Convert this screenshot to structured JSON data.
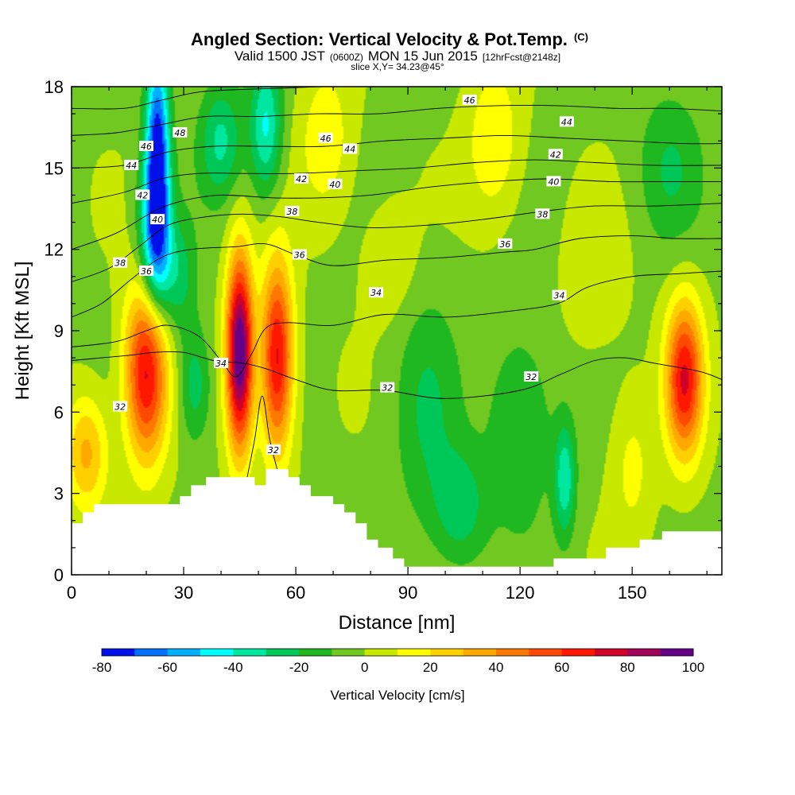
{
  "title": {
    "main": "Angled Section: Vertical Velocity & Pot.Temp.",
    "main_unit": "(C)",
    "valid_prefix": "Valid 1500 JST",
    "valid_z": "(0600Z)",
    "valid_date": "MON 15 Jun 2015",
    "forecast": "[12hrFcst@2148z]",
    "slice": "slice X,Y= 34.23@45°"
  },
  "chart_data": {
    "type": "heatmap",
    "xlabel": "Distance [nm]",
    "ylabel": "Height [Kft MSL]",
    "xlim": [
      0,
      174
    ],
    "ylim": [
      0,
      18
    ],
    "x_ticks": [
      0,
      30,
      60,
      90,
      120,
      150
    ],
    "y_ticks": [
      0,
      3,
      6,
      9,
      12,
      15,
      18
    ],
    "x_tick_labels": [
      "0",
      "30",
      "60",
      "90",
      "120",
      "150"
    ],
    "y_tick_labels": [
      "0",
      "3",
      "6",
      "9",
      "12",
      "15",
      "18"
    ],
    "background_value": -2,
    "features": [
      {
        "x": 23,
        "y": 15.5,
        "sx": 2.2,
        "sy": 2.8,
        "amp": -75
      },
      {
        "x": 22,
        "y": 12.5,
        "sx": 3.0,
        "sy": 2.0,
        "amp": -45
      },
      {
        "x": 52,
        "y": 16.5,
        "sx": 3.0,
        "sy": 1.8,
        "amp": -40
      },
      {
        "x": 40,
        "y": 16.0,
        "sx": 4.0,
        "sy": 1.5,
        "amp": -30
      },
      {
        "x": 28,
        "y": 11.0,
        "sx": 3.5,
        "sy": 1.5,
        "amp": -25
      },
      {
        "x": 20,
        "y": 7.5,
        "sx": 4.0,
        "sy": 2.3,
        "amp": 75
      },
      {
        "x": 45,
        "y": 8.2,
        "sx": 2.5,
        "sy": 2.5,
        "amp": 105
      },
      {
        "x": 55,
        "y": 8.0,
        "sx": 3.0,
        "sy": 2.5,
        "amp": 75
      },
      {
        "x": 164,
        "y": 7.2,
        "sx": 3.5,
        "sy": 2.0,
        "amp": 72
      },
      {
        "x": 4,
        "y": 4.5,
        "sx": 4.0,
        "sy": 1.5,
        "amp": 35
      },
      {
        "x": 33,
        "y": 7.0,
        "sx": 3.0,
        "sy": 1.5,
        "amp": -25
      },
      {
        "x": 132,
        "y": 3.5,
        "sx": 2.0,
        "sy": 1.5,
        "amp": -35
      },
      {
        "x": 104,
        "y": 2.5,
        "sx": 5.0,
        "sy": 1.5,
        "amp": -25
      },
      {
        "x": 120,
        "y": 5.5,
        "sx": 6.0,
        "sy": 2.5,
        "amp": -20
      },
      {
        "x": 95,
        "y": 6.0,
        "sx": 6.0,
        "sy": 3.0,
        "amp": -18
      },
      {
        "x": 113,
        "y": 16.0,
        "sx": 5.0,
        "sy": 2.0,
        "amp": 22
      },
      {
        "x": 68,
        "y": 16.0,
        "sx": 5.0,
        "sy": 2.0,
        "amp": 20
      },
      {
        "x": 85,
        "y": 11.5,
        "sx": 5.0,
        "sy": 1.5,
        "amp": 12
      },
      {
        "x": 160,
        "y": 15.0,
        "sx": 6.0,
        "sy": 2.0,
        "amp": -18
      },
      {
        "x": 140,
        "y": 11.0,
        "sx": 6.0,
        "sy": 2.0,
        "amp": 10
      },
      {
        "x": 150,
        "y": 4.0,
        "sx": 4.0,
        "sy": 2.0,
        "amp": 15
      }
    ],
    "terrain": [
      [
        0,
        1.9
      ],
      [
        3,
        1.9
      ],
      [
        3,
        2.3
      ],
      [
        6,
        2.3
      ],
      [
        6,
        2.6
      ],
      [
        29,
        2.6
      ],
      [
        29,
        2.9
      ],
      [
        32,
        2.9
      ],
      [
        32,
        3.3
      ],
      [
        36,
        3.3
      ],
      [
        36,
        3.6
      ],
      [
        49,
        3.6
      ],
      [
        49,
        3.3
      ],
      [
        52,
        3.3
      ],
      [
        52,
        3.9
      ],
      [
        58,
        3.9
      ],
      [
        58,
        3.6
      ],
      [
        61,
        3.6
      ],
      [
        61,
        3.3
      ],
      [
        64,
        3.3
      ],
      [
        64,
        2.9
      ],
      [
        70,
        2.9
      ],
      [
        70,
        2.6
      ],
      [
        73,
        2.6
      ],
      [
        73,
        2.3
      ],
      [
        76,
        2.3
      ],
      [
        76,
        1.9
      ],
      [
        79,
        1.9
      ],
      [
        79,
        1.3
      ],
      [
        82,
        1.3
      ],
      [
        82,
        1.0
      ],
      [
        86,
        1.0
      ],
      [
        86,
        0.6
      ],
      [
        89,
        0.6
      ],
      [
        89,
        0.3
      ],
      [
        129,
        0.3
      ],
      [
        129,
        0.6
      ],
      [
        143,
        0.6
      ],
      [
        143,
        1.0
      ],
      [
        152,
        1.0
      ],
      [
        152,
        1.3
      ],
      [
        158,
        1.3
      ],
      [
        158,
        1.6
      ],
      [
        174,
        1.6
      ]
    ],
    "contours": [
      {
        "label": "32",
        "label_x": 13.0,
        "label_y": 6.2,
        "points": [
          [
            0,
            7.9
          ],
          [
            8,
            8.0
          ],
          [
            16,
            8.1
          ],
          [
            22,
            8.2
          ],
          [
            30,
            8.2
          ],
          [
            38,
            7.9
          ],
          [
            46,
            7.8
          ],
          [
            52,
            7.6
          ],
          [
            60,
            7.2
          ],
          [
            70,
            6.8
          ],
          [
            84,
            6.8
          ],
          [
            100,
            6.5
          ],
          [
            120,
            6.8
          ],
          [
            131,
            7.4
          ],
          [
            140,
            7.9
          ],
          [
            148,
            8.0
          ],
          [
            156,
            7.8
          ],
          [
            168,
            7.5
          ],
          [
            174,
            7.2
          ]
        ]
      },
      {
        "label": "32",
        "label_x": 54.0,
        "label_y": 4.6,
        "points": [
          [
            47,
            3.6
          ],
          [
            49,
            5.0
          ],
          [
            51,
            6.6
          ],
          [
            53,
            5.0
          ],
          [
            55,
            3.9
          ]
        ]
      },
      {
        "label": "34",
        "label_x": 40.0,
        "label_y": 7.8,
        "points": [
          [
            0,
            8.4
          ],
          [
            12,
            8.6
          ],
          [
            20,
            9.0
          ],
          [
            26,
            9.2
          ],
          [
            34,
            8.8
          ],
          [
            40,
            7.9
          ],
          [
            44,
            7.3
          ],
          [
            48,
            8.1
          ],
          [
            52,
            9.1
          ],
          [
            58,
            9.3
          ],
          [
            70,
            9.2
          ],
          [
            84,
            9.6
          ],
          [
            100,
            9.5
          ],
          [
            116,
            9.7
          ],
          [
            130,
            10.0
          ],
          [
            138,
            10.6
          ],
          [
            150,
            11.0
          ],
          [
            162,
            11.1
          ],
          [
            174,
            11.2
          ]
        ]
      },
      {
        "label": "36",
        "label_x": 20.0,
        "label_y": 11.2,
        "points": [
          [
            0,
            9.5
          ],
          [
            8,
            10.0
          ],
          [
            16,
            10.9
          ],
          [
            24,
            11.7
          ],
          [
            32,
            12.0
          ],
          [
            44,
            12.1
          ],
          [
            52,
            12.2
          ],
          [
            60,
            11.8
          ],
          [
            70,
            11.4
          ],
          [
            84,
            11.6
          ],
          [
            100,
            11.7
          ],
          [
            116,
            11.9
          ],
          [
            124,
            12.0
          ],
          [
            136,
            12.4
          ],
          [
            150,
            12.5
          ],
          [
            162,
            12.4
          ],
          [
            174,
            12.4
          ]
        ]
      },
      {
        "label": "38",
        "label_x": 13.0,
        "label_y": 11.5,
        "points": [
          [
            0,
            10.8
          ],
          [
            10,
            11.3
          ],
          [
            18,
            12.1
          ],
          [
            26,
            12.9
          ],
          [
            36,
            13.2
          ],
          [
            46,
            13.3
          ],
          [
            56,
            13.2
          ],
          [
            66,
            13.0
          ],
          [
            80,
            12.8
          ],
          [
            96,
            12.9
          ],
          [
            110,
            13.1
          ],
          [
            126,
            13.4
          ],
          [
            140,
            13.6
          ],
          [
            156,
            13.6
          ],
          [
            174,
            13.7
          ]
        ]
      },
      {
        "label": "40",
        "label_x": 23.0,
        "label_y": 13.1,
        "points": [
          [
            0,
            12.0
          ],
          [
            12,
            12.6
          ],
          [
            22,
            13.4
          ],
          [
            30,
            13.8
          ],
          [
            40,
            14.0
          ],
          [
            54,
            13.9
          ],
          [
            66,
            13.9
          ],
          [
            80,
            14.0
          ],
          [
            96,
            14.3
          ],
          [
            112,
            14.5
          ],
          [
            128,
            14.6
          ],
          [
            144,
            14.5
          ],
          [
            160,
            14.5
          ],
          [
            174,
            14.5
          ]
        ]
      },
      {
        "label": "42",
        "label_x": 19.0,
        "label_y": 14.0,
        "points": [
          [
            0,
            13.7
          ],
          [
            14,
            14.1
          ],
          [
            24,
            14.6
          ],
          [
            34,
            14.8
          ],
          [
            46,
            14.8
          ],
          [
            60,
            14.8
          ],
          [
            76,
            14.9
          ],
          [
            92,
            15.0
          ],
          [
            108,
            15.2
          ],
          [
            124,
            15.3
          ],
          [
            140,
            15.2
          ],
          [
            156,
            15.1
          ],
          [
            174,
            15.1
          ]
        ]
      },
      {
        "label": "44",
        "label_x": 16.0,
        "label_y": 15.1,
        "points": [
          [
            0,
            15.0
          ],
          [
            14,
            15.1
          ],
          [
            26,
            15.6
          ],
          [
            38,
            15.8
          ],
          [
            52,
            15.8
          ],
          [
            68,
            15.8
          ],
          [
            84,
            16.0
          ],
          [
            100,
            16.1
          ],
          [
            116,
            16.2
          ],
          [
            132,
            16.1
          ],
          [
            148,
            16.0
          ],
          [
            164,
            15.9
          ],
          [
            174,
            15.9
          ]
        ]
      },
      {
        "label": "46",
        "label_x": 20.0,
        "label_y": 15.8,
        "points": [
          [
            0,
            16.2
          ],
          [
            12,
            16.3
          ],
          [
            24,
            16.6
          ],
          [
            36,
            16.9
          ],
          [
            50,
            16.9
          ],
          [
            66,
            17.0
          ],
          [
            82,
            17.0
          ],
          [
            98,
            17.2
          ],
          [
            114,
            17.3
          ],
          [
            130,
            17.3
          ],
          [
            146,
            17.2
          ],
          [
            160,
            17.2
          ],
          [
            174,
            17.1
          ]
        ]
      },
      {
        "label": "48",
        "label_x": 29.0,
        "label_y": 16.3,
        "points": [
          [
            0,
            17.2
          ],
          [
            14,
            17.2
          ],
          [
            24,
            17.5
          ],
          [
            34,
            17.8
          ],
          [
            46,
            17.9
          ],
          [
            58,
            17.95
          ],
          [
            66,
            18.0
          ]
        ]
      }
    ],
    "extra_labels": [
      {
        "label": "46",
        "x": 68.0,
        "y": 16.1
      },
      {
        "label": "44",
        "x": 74.5,
        "y": 15.7
      },
      {
        "label": "42",
        "x": 61.5,
        "y": 14.6
      },
      {
        "label": "40",
        "x": 70.5,
        "y": 14.4
      },
      {
        "label": "38",
        "x": 59.0,
        "y": 13.4
      },
      {
        "label": "36",
        "x": 61.0,
        "y": 11.8
      },
      {
        "label": "34",
        "x": 81.5,
        "y": 10.4
      },
      {
        "label": "32",
        "x": 84.5,
        "y": 6.9
      },
      {
        "label": "46",
        "x": 106.5,
        "y": 17.5
      },
      {
        "label": "44",
        "x": 132.5,
        "y": 16.7
      },
      {
        "label": "42",
        "x": 129.5,
        "y": 15.5
      },
      {
        "label": "40",
        "x": 129.0,
        "y": 14.5
      },
      {
        "label": "38",
        "x": 126.0,
        "y": 13.3
      },
      {
        "label": "36",
        "x": 116.0,
        "y": 12.2
      },
      {
        "label": "34",
        "x": 130.5,
        "y": 10.3
      },
      {
        "label": "32",
        "x": 123.0,
        "y": 7.3
      }
    ]
  },
  "colorbar": {
    "label": "Vertical Velocity [cm/s]",
    "min": -80,
    "max": 100,
    "step": 10,
    "tick_values": [
      -80,
      -60,
      -40,
      -20,
      0,
      20,
      40,
      60,
      80,
      100
    ],
    "tick_labels": [
      "-80",
      "-60",
      "-40",
      "-20",
      "0",
      "20",
      "40",
      "60",
      "80",
      "100"
    ],
    "colors": [
      "#0010e8",
      "#0070ff",
      "#00b0ff",
      "#00ffff",
      "#00e8a0",
      "#00c858",
      "#20b820",
      "#70c820",
      "#c8e800",
      "#ffff00",
      "#ffd000",
      "#ffa800",
      "#ff7800",
      "#ff4800",
      "#ff1800",
      "#d00028",
      "#a00058",
      "#640088"
    ]
  }
}
